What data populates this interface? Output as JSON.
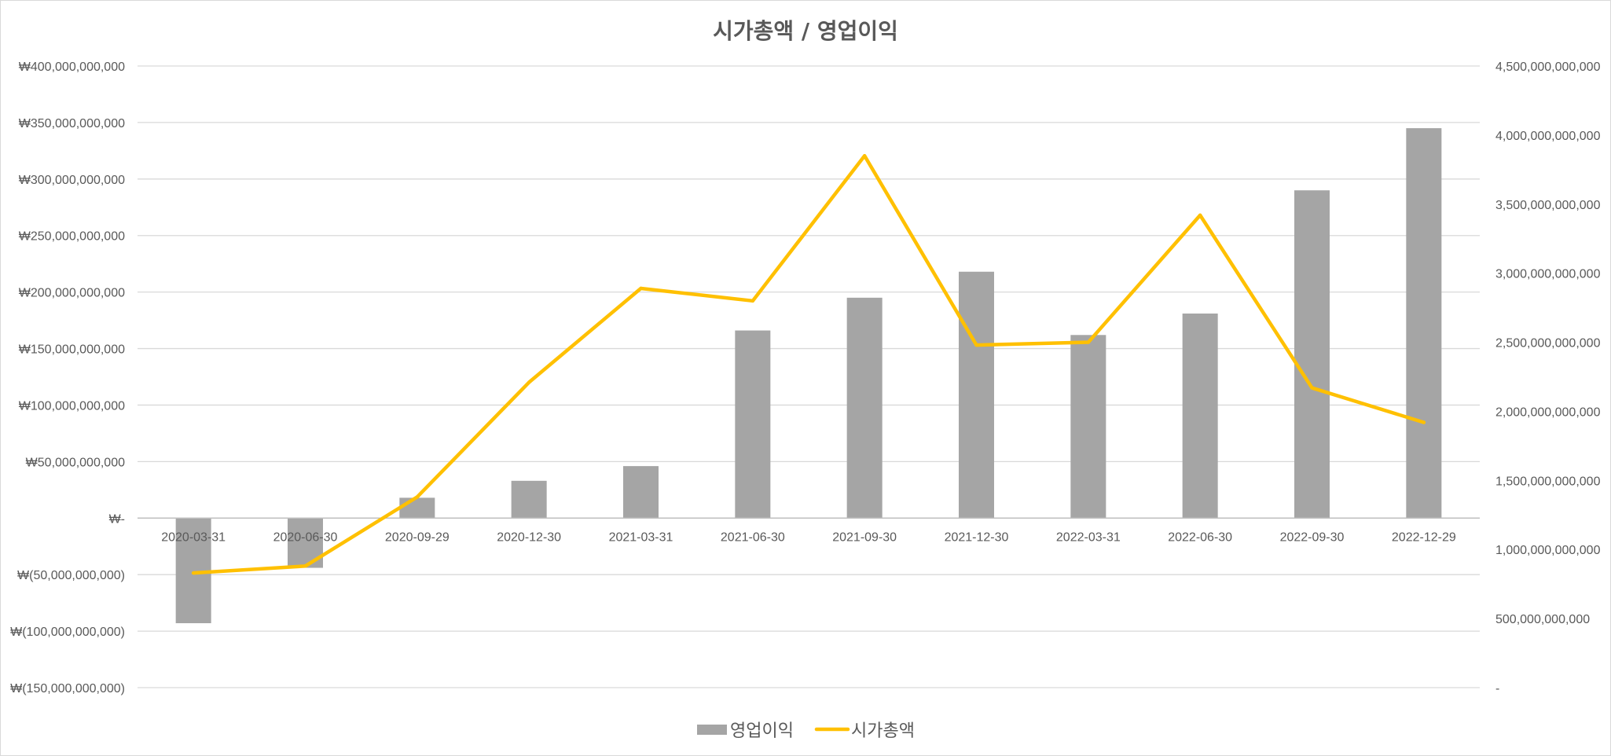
{
  "chart_data": {
    "type": "bar+line",
    "title": "시가총액  / 영업이익",
    "categories": [
      "2020-03-31",
      "2020-06-30",
      "2020-09-29",
      "2020-12-30",
      "2021-03-31",
      "2021-06-30",
      "2021-09-30",
      "2021-12-30",
      "2022-03-31",
      "2022-06-30",
      "2022-09-30",
      "2022-12-29"
    ],
    "series": [
      {
        "name": "영업이익",
        "type": "bar",
        "axis": "left",
        "color": "#a5a5a5",
        "values": [
          -93000000000,
          -44000000000,
          18000000000,
          33000000000,
          46000000000,
          166000000000,
          195000000000,
          218000000000,
          162000000000,
          181000000000,
          290000000000,
          345000000000
        ]
      },
      {
        "name": "시가총액",
        "type": "line",
        "axis": "right",
        "color": "#ffc000",
        "values": [
          830000000000,
          880000000000,
          1380000000000,
          2210000000000,
          2890000000000,
          2800000000000,
          3850000000000,
          2480000000000,
          2500000000000,
          3420000000000,
          2170000000000,
          1920000000000
        ]
      }
    ],
    "y_left": {
      "range": [
        -150000000000,
        400000000000
      ],
      "ticks": [
        400000000000,
        350000000000,
        300000000000,
        250000000000,
        200000000000,
        150000000000,
        100000000000,
        50000000000,
        0,
        -50000000000,
        -100000000000,
        -150000000000
      ],
      "tick_labels": [
        "₩400,000,000,000",
        "₩350,000,000,000",
        "₩300,000,000,000",
        "₩250,000,000,000",
        "₩200,000,000,000",
        "₩150,000,000,000",
        "₩100,000,000,000",
        "₩50,000,000,000",
        "₩-",
        "₩(50,000,000,000)",
        "₩(100,000,000,000)",
        "₩(150,000,000,000)"
      ]
    },
    "y_right": {
      "range": [
        0,
        4500000000000
      ],
      "ticks": [
        4500000000000,
        4000000000000,
        3500000000000,
        3000000000000,
        2500000000000,
        2000000000000,
        1500000000000,
        1000000000000,
        500000000000,
        0
      ],
      "tick_labels": [
        "4,500,000,000,000",
        "4,000,000,000,000",
        "3,500,000,000,000",
        "3,000,000,000,000",
        "2,500,000,000,000",
        "2,000,000,000,000",
        "1,500,000,000,000",
        "1,000,000,000,000",
        "500,000,000,000",
        "-"
      ]
    },
    "grid": true,
    "legend": "bottom",
    "legend_labels": [
      "영업이익",
      "시가총액"
    ]
  }
}
